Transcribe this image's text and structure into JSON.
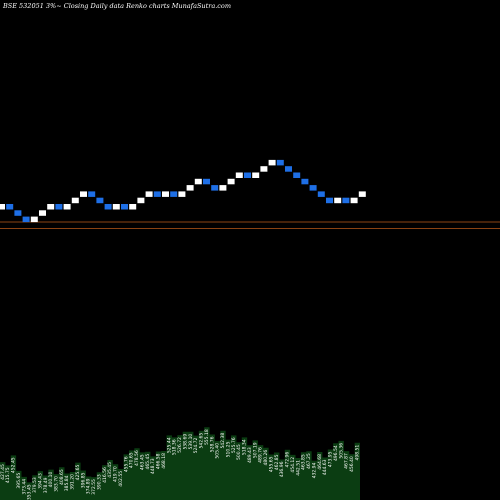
{
  "chart_data": {
    "type": "renko",
    "title": "BSE 532051 3%~  Closing Daily data  Renko  charts MunafaSutra.com",
    "box_value_ticks": false,
    "reference_lines_color": "#b85a1a",
    "up_color": "#ffffff",
    "down_color": "#1e6fe6",
    "volume_color": "#0b3d12",
    "bricks": [
      "up",
      "down",
      "down",
      "down",
      "up",
      "up",
      "up",
      "down",
      "up",
      "up",
      "up",
      "down",
      "down",
      "down",
      "up",
      "down",
      "up",
      "up",
      "up",
      "down",
      "up",
      "down",
      "up",
      "up",
      "up",
      "down",
      "down",
      "up",
      "up",
      "up",
      "down",
      "up",
      "up",
      "up",
      "down",
      "down",
      "down",
      "down",
      "down",
      "down",
      "down",
      "up",
      "down",
      "up",
      "up"
    ],
    "volume_labels": [
      "427.45",
      "415.75",
      "452.45",
      "395.65",
      "373.44",
      "353.45",
      "379.53",
      "394.43",
      "378.49",
      "400.10",
      "383.70",
      "408.65",
      "385.84",
      "391.20",
      "425.65",
      "396.85",
      "374.89",
      "372.55",
      "390.33",
      "416.56",
      "435.45",
      "419.70",
      "402.55",
      "455.76",
      "470.65",
      "478.56",
      "463.45",
      "465.45",
      "448.73",
      "466.58",
      "468.18",
      "525.44",
      "518.36",
      "526.72",
      "538.69",
      "539.10",
      "524.72",
      "542.65",
      "555.18",
      "528.76",
      "505.40",
      "542.38",
      "510.25",
      "525.76",
      "500.45",
      "518.34",
      "489.43",
      "507.19",
      "489.76",
      "480.26",
      "455.65",
      "462.85",
      "436.96",
      "472.96",
      "454.12",
      "442.51",
      "463.85",
      "467.25",
      "432.94",
      "464.68",
      "444.63",
      "473.95",
      "496.54",
      "505.36",
      "467.87",
      "456.40",
      "498.51"
    ]
  }
}
